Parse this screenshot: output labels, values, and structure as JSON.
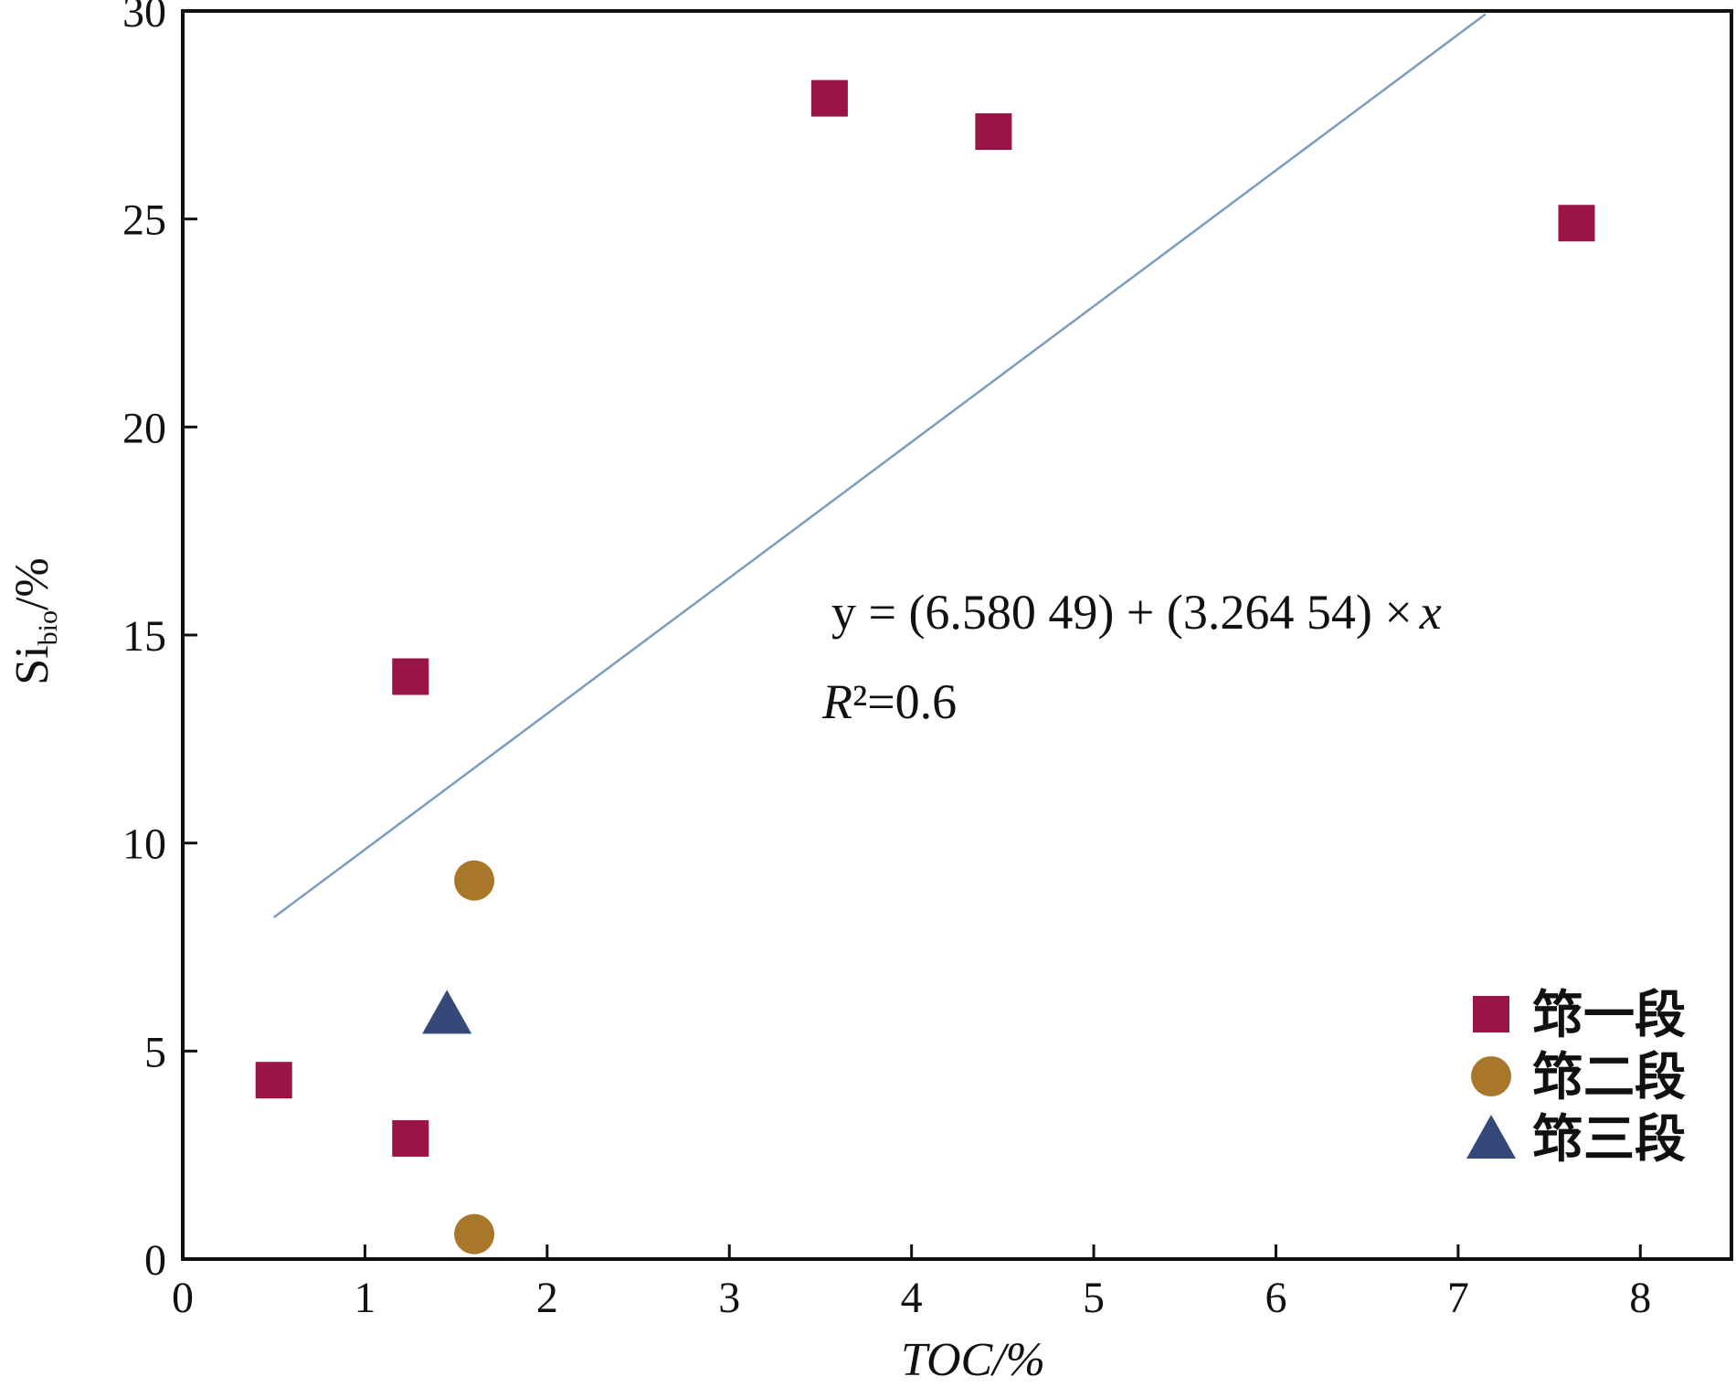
{
  "chart_data": {
    "type": "scatter",
    "xlabel": "TOC/%",
    "ylabel_main": "Si",
    "ylabel_sub": "bio",
    "ylabel_unit": "/%",
    "xlim": [
      0,
      8.5
    ],
    "ylim": [
      0,
      30
    ],
    "xticks": [
      0,
      1,
      2,
      3,
      4,
      5,
      6,
      7,
      8
    ],
    "yticks": [
      0,
      5,
      10,
      15,
      20,
      25,
      30
    ],
    "grid": false,
    "legend_position": "bottom-right",
    "series": [
      {
        "name": "筇一段",
        "marker": "square",
        "color": "#9b1448",
        "points": [
          [
            0.5,
            4.3
          ],
          [
            1.25,
            2.9
          ],
          [
            1.25,
            14.0
          ],
          [
            3.55,
            27.9
          ],
          [
            4.45,
            27.1
          ],
          [
            7.65,
            24.9
          ]
        ]
      },
      {
        "name": "筇二段",
        "marker": "circle",
        "color": "#a8772a",
        "points": [
          [
            1.6,
            9.1
          ],
          [
            1.6,
            0.6
          ]
        ]
      },
      {
        "name": "筇三段",
        "marker": "triangle",
        "color": "#34497a",
        "points": [
          [
            1.45,
            5.9
          ]
        ]
      }
    ],
    "fit_line": {
      "x_range": [
        0.5,
        7.15
      ],
      "intercept": 6.58049,
      "slope": 3.26454,
      "color": "#7a9cc0"
    },
    "annotations": {
      "equation_parts": [
        "y = (6.580 49) + (3.264 54) ×",
        "x"
      ],
      "r2_parts": [
        "R",
        "²=0.6"
      ]
    }
  }
}
